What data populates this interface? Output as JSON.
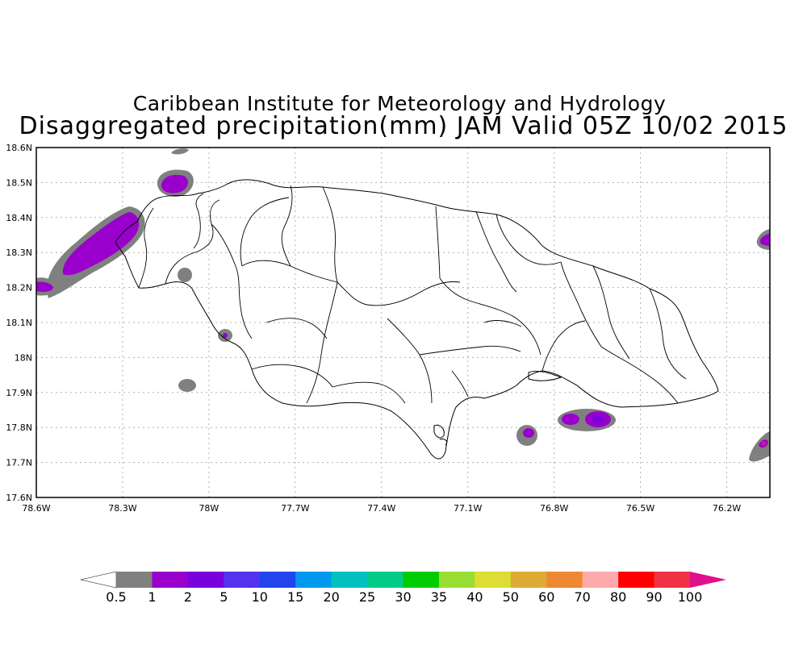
{
  "title": {
    "line1": "Caribbean Institute for Meteorology and Hydrology",
    "line2": "Disaggregated precipitation(mm) JAM Valid 05Z 10/02 2015"
  },
  "axes": {
    "lat_ticks": [
      "18.6N",
      "18.5N",
      "18.4N",
      "18.3N",
      "18.2N",
      "18.1N",
      "18N",
      "17.9N",
      "17.8N",
      "17.7N",
      "17.6N"
    ],
    "lon_ticks": [
      "78.6W",
      "78.3W",
      "78W",
      "77.7W",
      "77.4W",
      "77.1W",
      "76.8W",
      "76.5W",
      "76.2W"
    ],
    "lat_range": [
      17.6,
      18.6
    ],
    "lon_range": [
      -78.6,
      -76.05
    ]
  },
  "colorbar": {
    "labels": [
      "0.5",
      "1",
      "2",
      "5",
      "10",
      "15",
      "20",
      "25",
      "30",
      "35",
      "40",
      "50",
      "60",
      "70",
      "80",
      "90",
      "100"
    ],
    "colors": [
      "#808080",
      "#9900cc",
      "#7a00dd",
      "#5533ee",
      "#2244ee",
      "#0099ee",
      "#00c0c0",
      "#00cc88",
      "#00cc00",
      "#99dd33",
      "#dddd33",
      "#ddaa33",
      "#ee8833",
      "#ffaaaa",
      "#ff0000",
      "#ee3344"
    ],
    "low_arrow_color": "#ffffff",
    "high_arrow_color": "#e0118a"
  },
  "colors": {
    "background": "#ffffff",
    "land_outline": "#000000",
    "grid": "#b0b0b0",
    "precip_low": "#808080",
    "precip_1": "#9900cc",
    "precip_100": "#e0118a"
  }
}
